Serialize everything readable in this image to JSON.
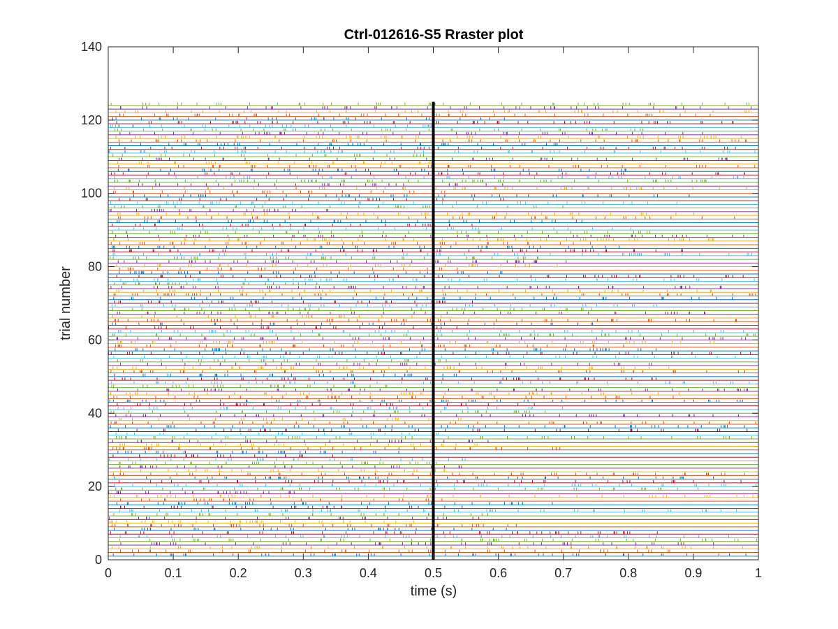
{
  "chart_data": {
    "type": "scatter",
    "subtype": "raster",
    "title": "Ctrl-012616-S5 Rraster plot",
    "xlabel": "time (s)",
    "ylabel": "trial number",
    "xlim": [
      0,
      1
    ],
    "ylim": [
      0,
      140
    ],
    "x_ticks": [
      "0",
      "0.1",
      "0.2",
      "0.3",
      "0.4",
      "0.5",
      "0.6",
      "0.7",
      "0.8",
      "0.9",
      "1"
    ],
    "y_ticks": [
      "0",
      "20",
      "40",
      "60",
      "80",
      "100",
      "120",
      "140"
    ],
    "grid": false,
    "legend": "none",
    "n_trials": 124,
    "event_marker": {
      "x": 0.5,
      "y_range": [
        0,
        125
      ],
      "color": "#000000"
    },
    "series_colors": [
      "#0072BD",
      "#D95319",
      "#EDB120",
      "#7E2F8E",
      "#77AC30",
      "#4DBEEE",
      "#A2142F"
    ]
  }
}
